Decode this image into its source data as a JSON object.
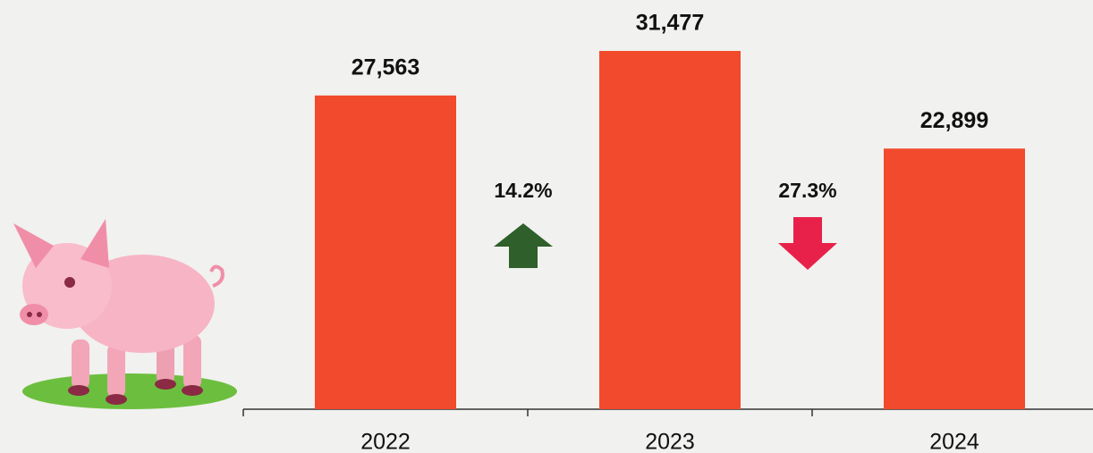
{
  "chart_data": {
    "type": "bar",
    "categories": [
      "2022",
      "2023",
      "2024"
    ],
    "values": [
      27563,
      31477,
      22899
    ],
    "value_labels": [
      "27,563",
      "31,477",
      "22,899"
    ],
    "color": "#f24a2c",
    "changes": [
      {
        "value": 14.2,
        "label": "14.2%",
        "direction": "up",
        "color": "#2f5f2b"
      },
      {
        "value": 27.3,
        "label": "27.3%",
        "direction": "down",
        "color": "#e8214a"
      }
    ]
  }
}
